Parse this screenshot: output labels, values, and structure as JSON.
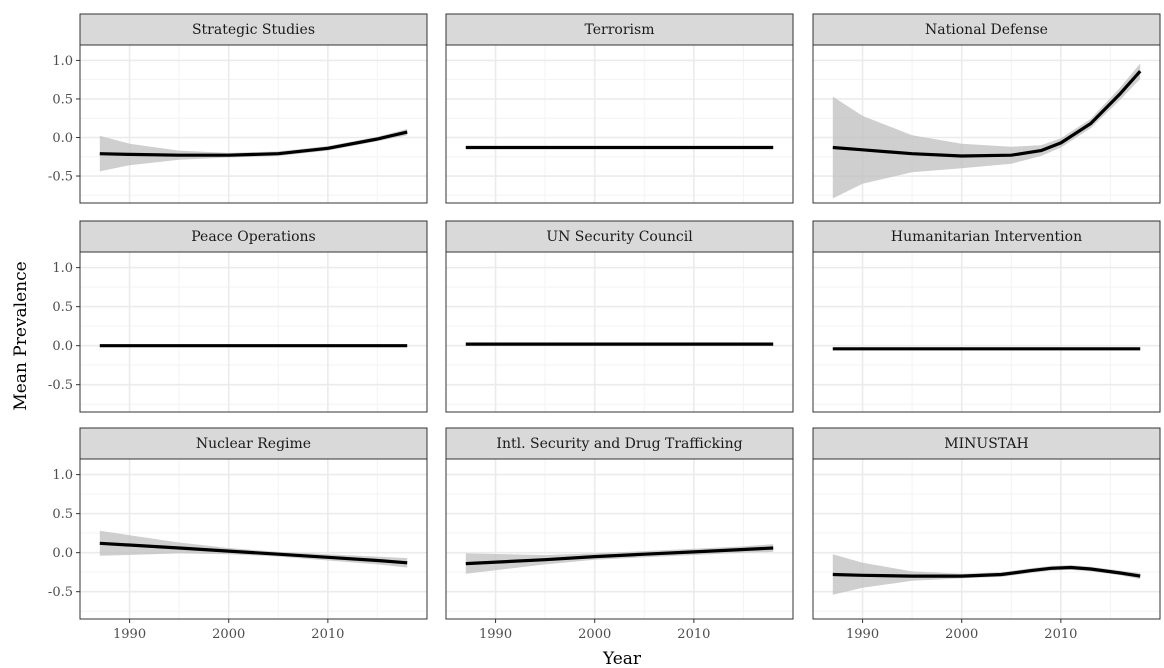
{
  "chart_data": {
    "type": "line",
    "subtype": "faceted smoothed trend with confidence band",
    "xlabel": "Year",
    "ylabel": "Mean Prevalence",
    "xlim": [
      1985,
      2020
    ],
    "ylim": [
      -0.85,
      1.2
    ],
    "x_ticks": [
      1990,
      2000,
      2010
    ],
    "x_tick_labels": [
      "1990",
      "2000",
      "2010"
    ],
    "y_ticks": [
      -0.5,
      0.0,
      0.5,
      1.0
    ],
    "y_tick_labels": [
      "-0.5",
      "0.0",
      "0.5",
      "1.0"
    ],
    "grid": true,
    "facet_layout": {
      "rows": 3,
      "cols": 3
    },
    "colors": {
      "line": "#000000",
      "band": "#bfbfbf",
      "strip_bg": "#d9d9d9",
      "grid": "#ebebeb",
      "border": "#333333"
    },
    "facets": [
      {
        "title": "Strategic Studies",
        "x": [
          1987,
          1990,
          1995,
          2000,
          2005,
          2010,
          2015,
          2018
        ],
        "y": [
          -0.21,
          -0.22,
          -0.23,
          -0.23,
          -0.21,
          -0.14,
          -0.02,
          0.07
        ],
        "lower": [
          -0.44,
          -0.36,
          -0.29,
          -0.26,
          -0.24,
          -0.17,
          -0.05,
          0.03
        ],
        "upper": [
          0.02,
          -0.08,
          -0.17,
          -0.2,
          -0.18,
          -0.11,
          0.01,
          0.11
        ]
      },
      {
        "title": "Terrorism",
        "x": [
          1987,
          2018
        ],
        "y": [
          -0.13,
          -0.13
        ],
        "lower": [
          -0.14,
          -0.14
        ],
        "upper": [
          -0.12,
          -0.12
        ]
      },
      {
        "title": "National Defense",
        "x": [
          1987,
          1990,
          1995,
          2000,
          2005,
          2008,
          2010,
          2013,
          2016,
          2018
        ],
        "y": [
          -0.13,
          -0.16,
          -0.21,
          -0.24,
          -0.23,
          -0.17,
          -0.07,
          0.18,
          0.57,
          0.86
        ],
        "lower": [
          -0.79,
          -0.6,
          -0.45,
          -0.4,
          -0.34,
          -0.24,
          -0.13,
          0.12,
          0.49,
          0.76
        ],
        "upper": [
          0.53,
          0.28,
          0.03,
          -0.08,
          -0.12,
          -0.1,
          -0.01,
          0.24,
          0.65,
          0.96
        ]
      },
      {
        "title": "Peace Operations",
        "x": [
          1987,
          2018
        ],
        "y": [
          0.0,
          0.0
        ],
        "lower": [
          -0.01,
          -0.01
        ],
        "upper": [
          0.01,
          0.01
        ]
      },
      {
        "title": "UN Security Council",
        "x": [
          1987,
          2018
        ],
        "y": [
          0.02,
          0.02
        ],
        "lower": [
          0.01,
          0.01
        ],
        "upper": [
          0.03,
          0.03
        ]
      },
      {
        "title": "Humanitarian Intervention",
        "x": [
          1987,
          2018
        ],
        "y": [
          -0.04,
          -0.04
        ],
        "lower": [
          -0.05,
          -0.05
        ],
        "upper": [
          -0.03,
          -0.03
        ]
      },
      {
        "title": "Nuclear Regime",
        "x": [
          1987,
          1995,
          2000,
          2005,
          2010,
          2015,
          2018
        ],
        "y": [
          0.12,
          0.06,
          0.02,
          -0.02,
          -0.06,
          -0.1,
          -0.13
        ],
        "lower": [
          -0.04,
          -0.01,
          -0.02,
          -0.05,
          -0.1,
          -0.15,
          -0.19
        ],
        "upper": [
          0.28,
          0.13,
          0.06,
          0.01,
          -0.02,
          -0.05,
          -0.07
        ]
      },
      {
        "title": "Intl. Security and Drug Trafficking",
        "x": [
          1987,
          1995,
          2000,
          2005,
          2010,
          2015,
          2018
        ],
        "y": [
          -0.14,
          -0.09,
          -0.05,
          -0.02,
          0.01,
          0.04,
          0.06
        ],
        "lower": [
          -0.27,
          -0.15,
          -0.09,
          -0.06,
          -0.03,
          0.0,
          0.01
        ],
        "upper": [
          -0.01,
          -0.03,
          -0.01,
          0.02,
          0.05,
          0.08,
          0.11
        ]
      },
      {
        "title": "MINUSTAH",
        "x": [
          1987,
          1990,
          1995,
          2000,
          2004,
          2007,
          2009,
          2011,
          2013,
          2016,
          2018
        ],
        "y": [
          -0.28,
          -0.29,
          -0.3,
          -0.3,
          -0.28,
          -0.23,
          -0.2,
          -0.19,
          -0.21,
          -0.26,
          -0.3
        ],
        "lower": [
          -0.54,
          -0.45,
          -0.36,
          -0.33,
          -0.31,
          -0.26,
          -0.23,
          -0.22,
          -0.24,
          -0.29,
          -0.34
        ],
        "upper": [
          -0.02,
          -0.13,
          -0.24,
          -0.27,
          -0.25,
          -0.2,
          -0.17,
          -0.16,
          -0.18,
          -0.23,
          -0.26
        ]
      }
    ]
  }
}
